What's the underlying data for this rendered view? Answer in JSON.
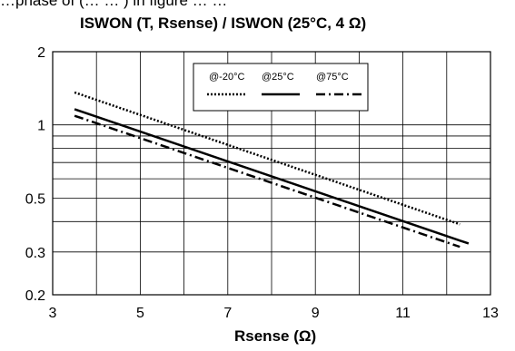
{
  "clipped_top_text": "…phase of (… … ) in figure … …",
  "chart_data": {
    "type": "line",
    "title": "ISWON (T, Rsense) / ISWON (25°C, 4 Ω)",
    "xlabel": "Rsense (Ω)",
    "ylabel": "",
    "xlim": [
      3,
      13
    ],
    "ylim": [
      0.2,
      2
    ],
    "yscale": "log",
    "grid": true,
    "x_ticks": [
      "3",
      "5",
      "7",
      "9",
      "11",
      "13"
    ],
    "y_ticks": [
      "0.2",
      "0.3",
      "0.5",
      "1",
      "2"
    ],
    "x_grid": [
      3,
      4,
      5,
      6,
      7,
      8,
      9,
      10,
      11,
      12,
      13
    ],
    "y_grid": [
      0.2,
      0.3,
      0.4,
      0.5,
      0.6,
      0.7,
      0.8,
      0.9,
      1,
      2
    ],
    "legend_position": "top-right",
    "series": [
      {
        "name": "@-20°C",
        "style": "dotted",
        "x": [
          3.5,
          12.3
        ],
        "y": [
          1.36,
          0.39
        ]
      },
      {
        "name": "@25°C",
        "style": "solid",
        "x": [
          3.5,
          12.5
        ],
        "y": [
          1.16,
          0.325
        ]
      },
      {
        "name": "@75°C",
        "style": "dashdot",
        "x": [
          3.5,
          12.3
        ],
        "y": [
          1.09,
          0.315
        ]
      }
    ]
  }
}
